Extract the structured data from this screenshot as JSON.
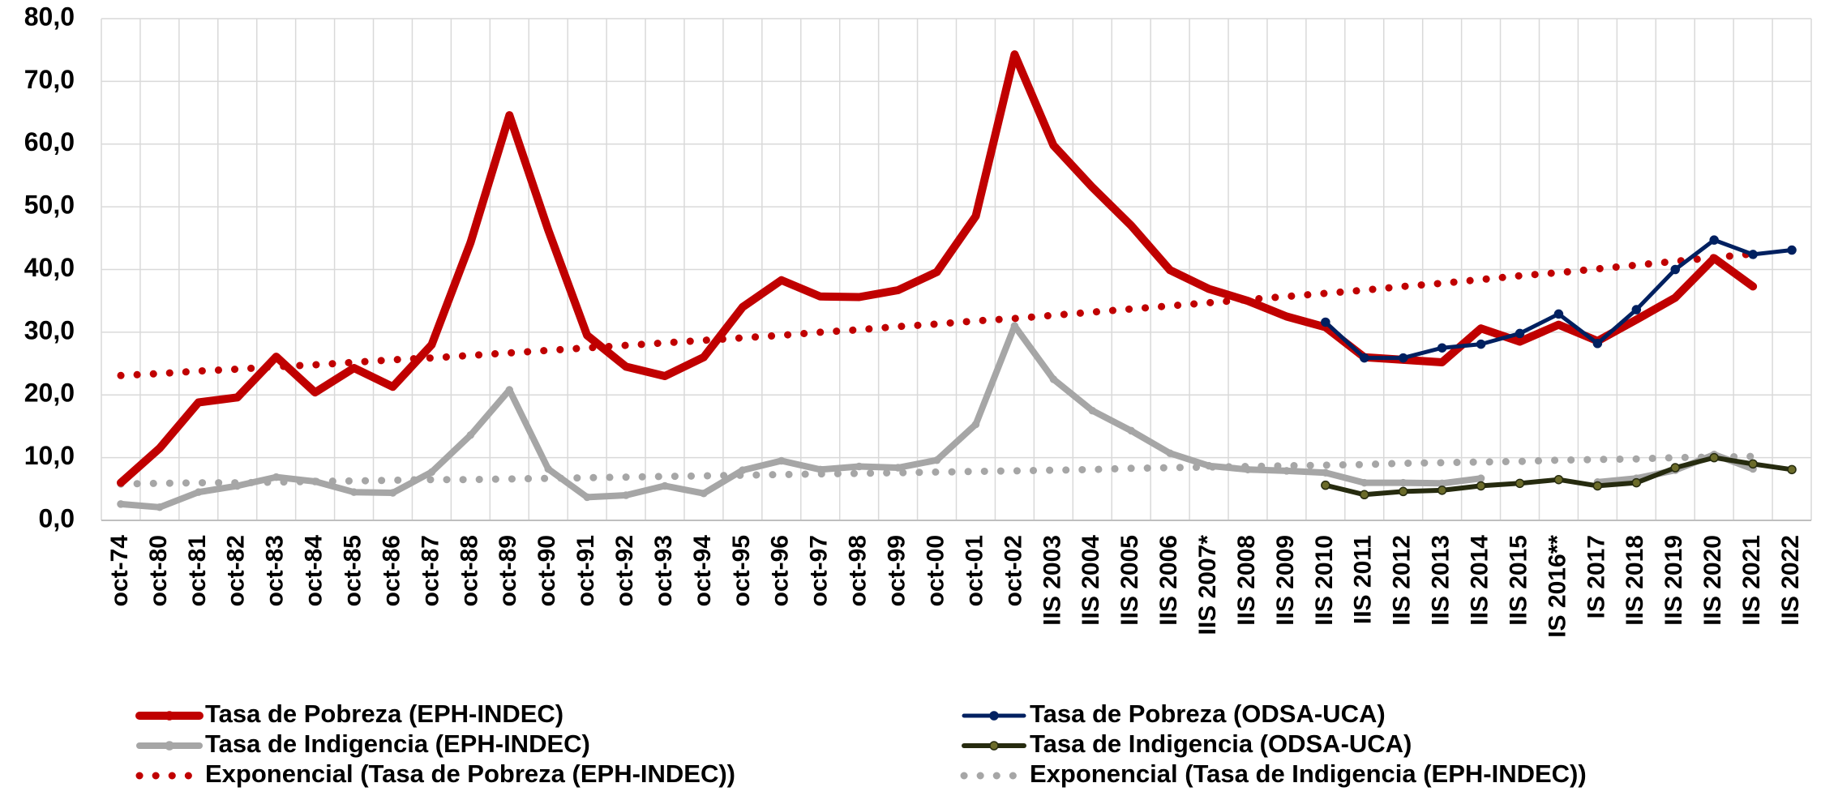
{
  "chart_data": {
    "type": "line",
    "categories": [
      "oct-74",
      "oct-80",
      "oct-81",
      "oct-82",
      "oct-83",
      "oct-84",
      "oct-85",
      "oct-86",
      "oct-87",
      "oct-88",
      "oct-89",
      "oct-90",
      "oct-91",
      "oct-92",
      "oct-93",
      "oct-94",
      "oct-95",
      "oct-96",
      "oct-97",
      "oct-98",
      "oct-99",
      "oct-00",
      "oct-01",
      "oct-02",
      "IIS 2003",
      "IIS 2004",
      "IIS 2005",
      "IIS 2006",
      "IIS 2007*",
      "IIS 2008",
      "IIS 2009",
      "IIS 2010",
      "IIS 2011",
      "IIS 2012",
      "IIS 2013",
      "IIS 2014",
      "IIS 2015",
      "IS 2016**",
      "IS 2017",
      "IIS 2018",
      "IIS 2019",
      "IIS 2020",
      "IIS 2021",
      "IIS 2022"
    ],
    "series": [
      {
        "name": "Tasa de Pobreza (EPH-INDEC)",
        "color": "#c00000",
        "style": "solid",
        "values": [
          6.0,
          11.5,
          18.8,
          19.6,
          26.1,
          20.4,
          24.3,
          21.3,
          28.0,
          44.3,
          64.6,
          46.3,
          29.5,
          24.5,
          23.0,
          26.0,
          34.0,
          38.3,
          35.7,
          35.6,
          36.7,
          39.6,
          48.5,
          74.3,
          59.8,
          53.1,
          47.0,
          39.9,
          36.9,
          35.0,
          32.5,
          30.8,
          26.0,
          25.6,
          25.2,
          30.6,
          28.5,
          31.2,
          28.6,
          32.0,
          35.5,
          41.8,
          37.3,
          null
        ]
      },
      {
        "name": "Tasa de Pobreza (ODSA-UCA)",
        "color": "#002060",
        "style": "solid",
        "values": [
          null,
          null,
          null,
          null,
          null,
          null,
          null,
          null,
          null,
          null,
          null,
          null,
          null,
          null,
          null,
          null,
          null,
          null,
          null,
          null,
          null,
          null,
          null,
          null,
          null,
          null,
          null,
          null,
          null,
          null,
          null,
          31.6,
          25.9,
          25.9,
          27.5,
          28.1,
          29.8,
          32.9,
          28.2,
          33.6,
          40.0,
          44.7,
          42.4,
          43.1
        ]
      },
      {
        "name": "Tasa de Indigencia (EPH-INDEC)",
        "color": "#a6a6a6",
        "style": "solid",
        "values": [
          2.6,
          2.1,
          4.5,
          5.5,
          6.9,
          6.2,
          4.5,
          4.4,
          7.7,
          13.6,
          20.8,
          8.2,
          3.7,
          4.0,
          5.5,
          4.3,
          8.0,
          9.5,
          8.1,
          8.6,
          8.4,
          9.6,
          15.3,
          31.0,
          22.5,
          17.5,
          14.3,
          10.7,
          8.7,
          8.1,
          7.9,
          7.6,
          6.0,
          6.0,
          5.9,
          6.7,
          null,
          null,
          6.1,
          6.7,
          8.0,
          10.5,
          8.2,
          null
        ]
      },
      {
        "name": "Tasa de Indigencia (ODSA-UCA)",
        "color": "#262b0f",
        "style": "solid",
        "values": [
          null,
          null,
          null,
          null,
          null,
          null,
          null,
          null,
          null,
          null,
          null,
          null,
          null,
          null,
          null,
          null,
          null,
          null,
          null,
          null,
          null,
          null,
          null,
          null,
          null,
          null,
          null,
          null,
          null,
          null,
          null,
          5.6,
          4.1,
          4.6,
          4.8,
          5.5,
          5.9,
          6.5,
          5.5,
          6.0,
          8.4,
          10.0,
          9.0,
          8.1
        ]
      },
      {
        "name": "Exponencial (Tasa de Pobreza (EPH-INDEC))",
        "color": "#c00000",
        "style": "dotted",
        "values": [
          23.1,
          23.4,
          23.8,
          24.1,
          24.5,
          24.8,
          25.2,
          25.6,
          25.9,
          26.3,
          26.7,
          27.1,
          27.5,
          27.9,
          28.3,
          28.7,
          29.1,
          29.5,
          30.0,
          30.4,
          30.9,
          31.3,
          31.8,
          32.2,
          32.7,
          33.2,
          33.7,
          34.2,
          34.7,
          35.2,
          35.7,
          36.2,
          36.7,
          37.3,
          37.8,
          38.4,
          39.0,
          39.5,
          40.1,
          40.7,
          41.3,
          41.9,
          42.5,
          null
        ]
      },
      {
        "name": "Exponencial (Tasa de Indigencia (EPH-INDEC))",
        "color": "#a6a6a6",
        "style": "dotted",
        "values": [
          5.8,
          5.9,
          6.0,
          6.0,
          6.1,
          6.2,
          6.3,
          6.4,
          6.5,
          6.5,
          6.6,
          6.7,
          6.8,
          6.9,
          7.0,
          7.1,
          7.2,
          7.3,
          7.4,
          7.5,
          7.6,
          7.7,
          7.8,
          7.9,
          8.0,
          8.1,
          8.3,
          8.4,
          8.5,
          8.6,
          8.7,
          8.8,
          8.9,
          9.1,
          9.2,
          9.3,
          9.4,
          9.6,
          9.7,
          9.8,
          10.0,
          10.1,
          10.2,
          null
        ]
      }
    ],
    "ylim": [
      0,
      80
    ],
    "yticks": [
      {
        "value": 0,
        "label": "0,0"
      },
      {
        "value": 10,
        "label": "10,0"
      },
      {
        "value": 20,
        "label": "20,0"
      },
      {
        "value": 30,
        "label": "30,0"
      },
      {
        "value": 40,
        "label": "40,0"
      },
      {
        "value": 50,
        "label": "50,0"
      },
      {
        "value": 60,
        "label": "60,0"
      },
      {
        "value": 70,
        "label": "70,0"
      },
      {
        "value": 80,
        "label": "80,0"
      }
    ],
    "grid": true
  }
}
